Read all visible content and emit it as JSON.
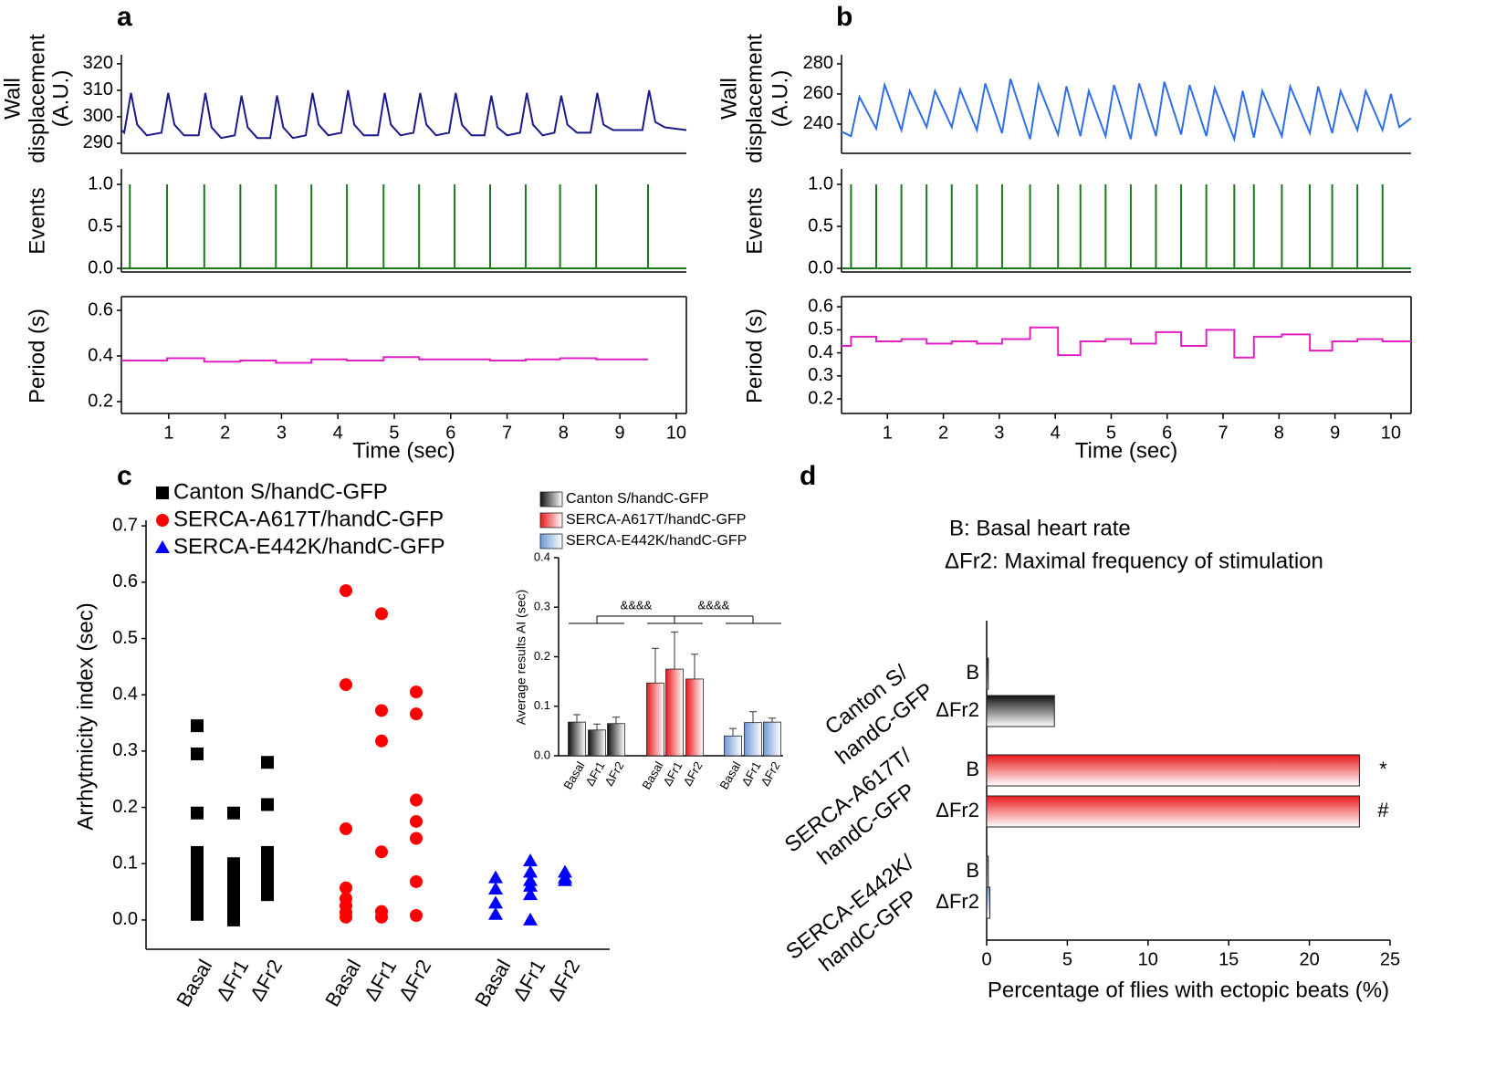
{
  "panel_labels": [
    "a",
    "b",
    "c",
    "d"
  ],
  "chart_data": [
    {
      "type": "line",
      "ylabel": [
        "Wall",
        "displacement",
        "(A.U.)"
      ],
      "color": "#1a1a8c",
      "xlim": [
        0.16,
        10.18
      ],
      "ylim": [
        286.2,
        323.4
      ],
      "yticks": [
        290,
        300,
        310,
        320
      ],
      "x": [
        0.16,
        0.21,
        0.33,
        0.44,
        0.61,
        0.87,
        0.99,
        1.1,
        1.27,
        1.53,
        1.65,
        1.76,
        1.93,
        2.17,
        2.29,
        2.4,
        2.57,
        2.8,
        2.92,
        3.03,
        3.2,
        3.43,
        3.55,
        3.66,
        3.83,
        4.06,
        4.18,
        4.29,
        4.46,
        4.71,
        4.83,
        4.94,
        5.11,
        5.34,
        5.46,
        5.57,
        5.74,
        5.97,
        6.09,
        6.2,
        6.37,
        6.6,
        6.72,
        6.83,
        7.0,
        7.23,
        7.35,
        7.46,
        7.63,
        7.84,
        7.96,
        8.07,
        8.24,
        8.48,
        8.6,
        8.71,
        8.88,
        9.4,
        9.52,
        9.63,
        9.8,
        10.18
      ],
      "values": [
        295,
        294,
        309,
        297,
        293,
        294,
        309,
        297,
        293,
        293,
        309,
        296,
        292,
        293,
        308,
        296,
        292,
        292,
        308,
        296,
        292,
        293,
        309,
        297,
        293,
        294,
        310,
        297,
        293,
        293,
        309,
        297,
        293,
        294,
        309,
        297,
        293,
        294,
        309,
        297,
        293,
        293,
        308,
        296,
        293,
        294,
        309,
        297,
        293,
        294,
        308,
        297,
        294,
        294,
        309,
        297,
        295,
        295,
        310,
        298,
        296,
        295
      ]
    },
    {
      "type": "events",
      "ylabel": "Events",
      "color": "#1a7a1a",
      "xlim": [
        0.16,
        10.18
      ],
      "ylim": [
        -0.043,
        1.185
      ],
      "yticks": [
        {
          "value": 0,
          "label": "0.0"
        },
        0.5,
        {
          "value": 1,
          "label": "1.0"
        }
      ],
      "x": [
        0.31,
        0.97,
        1.63,
        2.27,
        2.9,
        3.53,
        4.16,
        4.81,
        5.44,
        6.07,
        6.7,
        7.33,
        7.94,
        8.58,
        9.5
      ],
      "values": [
        1,
        1,
        1,
        1,
        1,
        1,
        1,
        1,
        1,
        1,
        1,
        1,
        1,
        1,
        1
      ]
    },
    {
      "type": "step",
      "ylabel": "Period (s)",
      "xlabel": "Time (sec)",
      "color": "#e020c0",
      "xlim": [
        0.16,
        10.18
      ],
      "xticks": [
        1,
        2,
        3,
        4,
        5,
        6,
        7,
        8,
        9,
        10
      ],
      "ylim": [
        0.148,
        0.66
      ],
      "yticks": [
        0.2,
        0.4,
        0.6
      ],
      "x": [
        0.16,
        0.97,
        1.63,
        2.27,
        2.9,
        3.53,
        4.16,
        4.81,
        5.44,
        6.07,
        6.7,
        7.33,
        7.94,
        8.58,
        9.5
      ],
      "values": [
        0.38,
        0.39,
        0.375,
        0.38,
        0.37,
        0.385,
        0.38,
        0.395,
        0.385,
        0.385,
        0.38,
        0.385,
        0.39,
        0.385,
        0.385
      ]
    },
    {
      "type": "line",
      "ylabel": [
        "Wall",
        "displacement",
        "(A.U.)"
      ],
      "color": "#2f6fe6",
      "xlim": [
        0.18,
        10.36
      ],
      "ylim": [
        220.6,
        286
      ],
      "yticks": [
        240,
        260,
        280
      ],
      "x": [
        0.18,
        0.35,
        0.5,
        0.8,
        0.95,
        1.25,
        1.4,
        1.7,
        1.85,
        2.15,
        2.3,
        2.6,
        2.75,
        3.05,
        3.2,
        3.55,
        3.7,
        4.05,
        4.2,
        4.45,
        4.6,
        4.9,
        5.05,
        5.35,
        5.5,
        5.8,
        5.95,
        6.25,
        6.4,
        6.7,
        6.85,
        7.2,
        7.35,
        7.55,
        7.7,
        8.05,
        8.2,
        8.55,
        8.7,
        8.95,
        9.1,
        9.4,
        9.55,
        9.85,
        10.0,
        10.15,
        10.36
      ],
      "values": [
        235,
        232,
        258,
        237,
        266,
        236,
        262,
        238,
        262,
        238,
        263,
        236,
        267,
        234,
        270,
        230,
        266,
        233,
        265,
        232,
        262,
        232,
        266,
        230,
        267,
        232,
        268,
        233,
        266,
        232,
        264,
        230,
        262,
        231,
        262,
        232,
        265,
        234,
        265,
        234,
        262,
        236,
        262,
        236,
        260,
        238,
        244
      ]
    },
    {
      "type": "events",
      "ylabel": "Events",
      "color": "#1a7a1a",
      "xlim": [
        0.18,
        10.36
      ],
      "ylim": [
        -0.043,
        1.185
      ],
      "yticks": [
        {
          "value": 0,
          "label": "0.0"
        },
        0.5,
        {
          "value": 1,
          "label": "1.0"
        }
      ],
      "x": [
        0.35,
        0.8,
        1.25,
        1.7,
        2.15,
        2.6,
        3.05,
        3.55,
        4.05,
        4.45,
        4.9,
        5.35,
        5.8,
        6.25,
        6.7,
        7.2,
        7.55,
        8.05,
        8.55,
        8.95,
        9.4,
        9.85
      ],
      "values": [
        1,
        1,
        1,
        1,
        1,
        1,
        1,
        1,
        1,
        1,
        1,
        1,
        1,
        1,
        1,
        1,
        1,
        1,
        1,
        1,
        1,
        1
      ]
    },
    {
      "type": "step",
      "ylabel": "Period (s)",
      "xlabel": "Time (sec)",
      "color": "#e020c0",
      "xlim": [
        0.18,
        10.36
      ],
      "xticks": [
        1,
        2,
        3,
        4,
        5,
        6,
        7,
        8,
        9,
        10
      ],
      "ylim": [
        0.137,
        0.644
      ],
      "yticks": [
        0.2,
        0.3,
        0.4,
        0.5,
        0.6
      ],
      "x": [
        0.18,
        0.35,
        0.8,
        1.25,
        1.7,
        2.15,
        2.6,
        3.05,
        3.55,
        4.05,
        4.45,
        4.9,
        5.35,
        5.8,
        6.25,
        6.7,
        7.2,
        7.55,
        8.05,
        8.55,
        8.95,
        9.4,
        9.85,
        10.36
      ],
      "values": [
        0.43,
        0.47,
        0.45,
        0.46,
        0.44,
        0.45,
        0.44,
        0.46,
        0.51,
        0.39,
        0.45,
        0.46,
        0.44,
        0.49,
        0.43,
        0.5,
        0.38,
        0.47,
        0.48,
        0.41,
        0.45,
        0.46,
        0.45,
        0.45
      ]
    },
    {
      "type": "scatter",
      "ylabel": "Arrhytmicity index (sec)",
      "ylim": [
        -0.052,
        0.71
      ],
      "yticks": [
        {
          "value": 0,
          "label": "0.0"
        },
        0.1,
        0.2,
        0.3,
        0.4,
        0.5,
        0.6,
        0.7
      ],
      "series": [
        {
          "name": "Canton S/handC-GFP",
          "color": "#000000",
          "marker": "square",
          "categories": [
            "Basal",
            "ΔFr1",
            "ΔFr2"
          ],
          "values": [
            [
              0.345,
              0.295,
              0.19,
              0.12,
              0.105,
              0.09,
              0.08,
              0.07,
              0.06,
              0.05,
              0.04,
              0.03,
              0.02,
              0.01
            ],
            [
              0.19,
              0.1,
              0.09,
              0.08,
              0.07,
              0.06,
              0.05,
              0.04,
              0.03,
              0.02,
              0.01,
              0
            ],
            [
              0.28,
              0.205,
              0.12,
              0.1,
              0.09,
              0.07,
              0.06,
              0.045
            ]
          ]
        },
        {
          "name": "SERCA-A617T/handC-GFP",
          "color": "#ff0000",
          "marker": "circle",
          "categories": [
            "Basal",
            "ΔFr1",
            "ΔFr2"
          ],
          "values": [
            [
              0.585,
              0.418,
              0.162,
              0.057,
              0.038,
              0.025,
              0.013,
              0.005
            ],
            [
              0.544,
              0.372,
              0.318,
              0.121,
              0.015,
              0.005
            ],
            [
              0.405,
              0.366,
              0.213,
              0.175,
              0.145,
              0.068,
              0.008
            ]
          ]
        },
        {
          "name": "SERCA-E442K/handC-GFP",
          "color": "#0000ff",
          "marker": "triangle",
          "categories": [
            "Basal",
            "ΔFr1",
            "ΔFr2"
          ],
          "values": [
            [
              0.075,
              0.055,
              0.03,
              0.01
            ],
            [
              0.105,
              0.085,
              0.07,
              0.06,
              0.045,
              0
            ],
            [
              0.085,
              0.075,
              0.07
            ]
          ]
        }
      ]
    },
    {
      "type": "bar",
      "ylabel": "Average results AI (sec)",
      "ylim": [
        0,
        0.4
      ],
      "yticks": [
        {
          "value": 0,
          "label": "0.0"
        },
        0.1,
        0.2,
        0.3,
        0.4
      ],
      "annotations": [
        "&&&&",
        "&&&&"
      ],
      "series": [
        {
          "name": "Canton S/handC-GFP",
          "color": "#111111",
          "categories": [
            "Basal",
            "ΔFr1",
            "ΔFr2"
          ],
          "values": [
            0.068,
            0.052,
            0.065
          ],
          "errors": [
            0.015,
            0.012,
            0.013
          ]
        },
        {
          "name": "SERCA-A617T/handC-GFP",
          "color": "#e8191c",
          "categories": [
            "Basal",
            "ΔFr1",
            "ΔFr2"
          ],
          "values": [
            0.147,
            0.175,
            0.155
          ],
          "errors": [
            0.07,
            0.075,
            0.05
          ]
        },
        {
          "name": "SERCA-E442K/handC-GFP",
          "color": "#6f98d8",
          "categories": [
            "Basal",
            "ΔFr1",
            "ΔFr2"
          ],
          "values": [
            0.04,
            0.067,
            0.068
          ],
          "errors": [
            0.015,
            0.022,
            0.008
          ]
        }
      ]
    },
    {
      "type": "barh",
      "xlabel": "Percentage of flies with ectopic beats (%)",
      "notes": [
        "B: Basal heart rate",
        "ΔFr2: Maximal frequency of stimulation"
      ],
      "xlim": [
        0,
        25
      ],
      "xticks": [
        0,
        5,
        10,
        15,
        20,
        25
      ],
      "groups": [
        {
          "label": [
            "Canton S/",
            "handC-GFP"
          ],
          "color": "#111111",
          "categories": [
            "B",
            "ΔFr2"
          ],
          "values": [
            0.1,
            4.2
          ]
        },
        {
          "label": [
            "SERCA-A617T/",
            "handC-GFP"
          ],
          "color": "#e8191c",
          "categories": [
            "B",
            "ΔFr2"
          ],
          "values": [
            23.1,
            23.1
          ],
          "annotations": [
            "*",
            "#"
          ]
        },
        {
          "label": [
            "SERCA-E442K/",
            "handC-GFP"
          ],
          "color": "#6f98d8",
          "categories": [
            "B",
            "ΔFr2"
          ],
          "values": [
            0.1,
            0.2
          ]
        }
      ]
    }
  ]
}
